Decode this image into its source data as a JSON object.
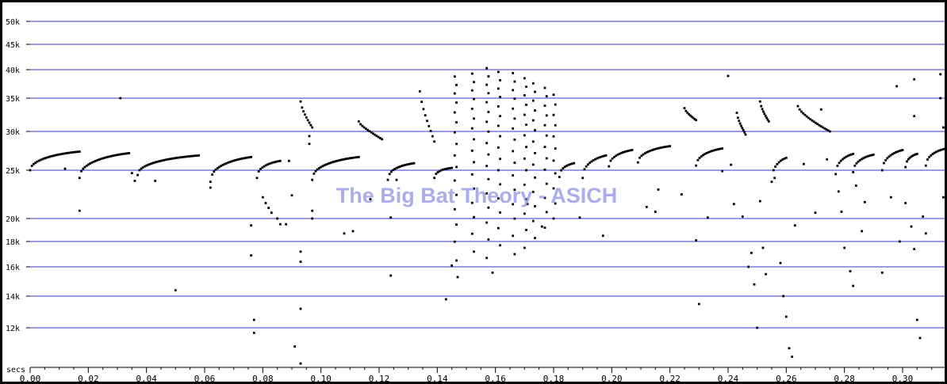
{
  "chart_data": {
    "type": "scatter",
    "title": "",
    "watermark": "The Big Bat Theory - ASICH",
    "x_unit_label": "secs",
    "xlim": [
      0.0,
      0.315
    ],
    "y_ticks": [
      {
        "value": 50000,
        "label": "50k"
      },
      {
        "value": 45000,
        "label": "45k"
      },
      {
        "value": 40000,
        "label": "40k"
      },
      {
        "value": 35000,
        "label": "35k"
      },
      {
        "value": 30000,
        "label": "30k"
      },
      {
        "value": 25000,
        "label": "25k"
      },
      {
        "value": 20000,
        "label": "20k"
      },
      {
        "value": 18000,
        "label": "18k"
      },
      {
        "value": 16000,
        "label": "16k"
      },
      {
        "value": 14000,
        "label": "14k"
      },
      {
        "value": 12000,
        "label": "12k"
      }
    ],
    "x_ticks": [
      {
        "value": 0.0,
        "label": "0.00"
      },
      {
        "value": 0.02,
        "label": "0.02"
      },
      {
        "value": 0.04,
        "label": "0.04"
      },
      {
        "value": 0.06,
        "label": "0.06"
      },
      {
        "value": 0.08,
        "label": "0.08"
      },
      {
        "value": 0.1,
        "label": "0.10"
      },
      {
        "value": 0.12,
        "label": "0.12"
      },
      {
        "value": 0.14,
        "label": "0.14"
      },
      {
        "value": 0.16,
        "label": "0.16"
      },
      {
        "value": 0.18,
        "label": "0.18"
      },
      {
        "value": 0.2,
        "label": "0.20"
      },
      {
        "value": 0.22,
        "label": "0.22"
      },
      {
        "value": 0.24,
        "label": "0.24"
      },
      {
        "value": 0.26,
        "label": "0.26"
      },
      {
        "value": 0.28,
        "label": "0.28"
      },
      {
        "value": 0.3,
        "label": "0.30"
      }
    ],
    "grid": true,
    "colors": {
      "gridline": "#3333cc",
      "point": "#000000",
      "watermark": "#8f92e3"
    },
    "calls": [
      {
        "t_start": 0.0,
        "t_end": 0.017,
        "f_start": 25000,
        "f_end": 27400
      },
      {
        "t_start": 0.017,
        "t_end": 0.034,
        "f_start": 24200,
        "f_end": 27200
      },
      {
        "t_start": 0.037,
        "t_end": 0.058,
        "f_start": 24500,
        "f_end": 26900
      },
      {
        "t_start": 0.062,
        "t_end": 0.076,
        "f_start": 23800,
        "f_end": 26700
      },
      {
        "t_start": 0.078,
        "t_end": 0.086,
        "f_start": 24200,
        "f_end": 26200
      },
      {
        "t_start": 0.093,
        "t_end": 0.097,
        "f_start": 34500,
        "f_end": 30600
      },
      {
        "t_start": 0.097,
        "t_end": 0.113,
        "f_start": 24000,
        "f_end": 26700
      },
      {
        "t_start": 0.113,
        "t_end": 0.121,
        "f_start": 31500,
        "f_end": 29000
      },
      {
        "t_start": 0.123,
        "t_end": 0.132,
        "f_start": 24000,
        "f_end": 25900
      },
      {
        "t_start": 0.134,
        "t_end": 0.139,
        "f_start": 36200,
        "f_end": 28700
      },
      {
        "t_start": 0.139,
        "t_end": 0.145,
        "f_start": 24200,
        "f_end": 25300
      },
      {
        "t_start": 0.182,
        "t_end": 0.187,
        "f_start": 24300,
        "f_end": 25900
      },
      {
        "t_start": 0.19,
        "t_end": 0.198,
        "f_start": 24200,
        "f_end": 26900
      },
      {
        "t_start": 0.199,
        "t_end": 0.207,
        "f_start": 25500,
        "f_end": 27600
      },
      {
        "t_start": 0.209,
        "t_end": 0.22,
        "f_start": 26000,
        "f_end": 28100
      },
      {
        "t_start": 0.225,
        "t_end": 0.229,
        "f_start": 33500,
        "f_end": 31700
      },
      {
        "t_start": 0.229,
        "t_end": 0.238,
        "f_start": 25600,
        "f_end": 27800
      },
      {
        "t_start": 0.243,
        "t_end": 0.246,
        "f_start": 32800,
        "f_end": 29600
      },
      {
        "t_start": 0.251,
        "t_end": 0.254,
        "f_start": 34500,
        "f_end": 31500
      },
      {
        "t_start": 0.255,
        "t_end": 0.26,
        "f_start": 23800,
        "f_end": 26600
      },
      {
        "t_start": 0.264,
        "t_end": 0.275,
        "f_start": 33800,
        "f_end": 30000
      },
      {
        "t_start": 0.277,
        "t_end": 0.283,
        "f_start": 24600,
        "f_end": 27100
      },
      {
        "t_start": 0.283,
        "t_end": 0.29,
        "f_start": 24800,
        "f_end": 27000
      },
      {
        "t_start": 0.293,
        "t_end": 0.3,
        "f_start": 25000,
        "f_end": 27600
      },
      {
        "t_start": 0.301,
        "t_end": 0.305,
        "f_start": 25400,
        "f_end": 27100
      },
      {
        "t_start": 0.308,
        "t_end": 0.315,
        "f_start": 25600,
        "f_end": 27800
      }
    ],
    "vertical_trains": [
      {
        "t": 0.146,
        "f_start": 38800,
        "f_end": 16500
      },
      {
        "t": 0.152,
        "f_start": 39300,
        "f_end": 17200
      },
      {
        "t": 0.157,
        "f_start": 40300,
        "f_end": 16700
      },
      {
        "t": 0.161,
        "f_start": 39600,
        "f_end": 17700
      },
      {
        "t": 0.166,
        "f_start": 39400,
        "f_end": 17000
      },
      {
        "t": 0.17,
        "f_start": 38500,
        "f_end": 17500
      },
      {
        "t": 0.173,
        "f_start": 37600,
        "f_end": 18300
      },
      {
        "t": 0.177,
        "f_start": 36800,
        "f_end": 19200
      },
      {
        "t": 0.18,
        "f_start": 35600,
        "f_end": 20000
      }
    ],
    "points": [
      [
        0.012,
        25200
      ],
      [
        0.017,
        20800
      ],
      [
        0.031,
        35000
      ],
      [
        0.035,
        24700
      ],
      [
        0.036,
        23900
      ],
      [
        0.043,
        23900
      ],
      [
        0.05,
        14400
      ],
      [
        0.062,
        23200
      ],
      [
        0.076,
        19400
      ],
      [
        0.076,
        16900
      ],
      [
        0.077,
        12500
      ],
      [
        0.077,
        11700
      ],
      [
        0.08,
        22200
      ],
      [
        0.081,
        21600
      ],
      [
        0.082,
        21100
      ],
      [
        0.083,
        20600
      ],
      [
        0.085,
        20000
      ],
      [
        0.086,
        19500
      ],
      [
        0.088,
        19500
      ],
      [
        0.089,
        26200
      ],
      [
        0.09,
        22400
      ],
      [
        0.091,
        10900
      ],
      [
        0.093,
        17200
      ],
      [
        0.093,
        16400
      ],
      [
        0.093,
        13200
      ],
      [
        0.093,
        9900
      ],
      [
        0.096,
        29400
      ],
      [
        0.096,
        28400
      ],
      [
        0.097,
        20800
      ],
      [
        0.097,
        20000
      ],
      [
        0.108,
        18700
      ],
      [
        0.111,
        18900
      ],
      [
        0.117,
        22000
      ],
      [
        0.124,
        20100
      ],
      [
        0.124,
        15400
      ],
      [
        0.126,
        24000
      ],
      [
        0.143,
        13800
      ],
      [
        0.145,
        16100
      ],
      [
        0.147,
        15300
      ],
      [
        0.159,
        15600
      ],
      [
        0.171,
        21500
      ],
      [
        0.176,
        19300
      ],
      [
        0.189,
        20100
      ],
      [
        0.197,
        18500
      ],
      [
        0.212,
        21200
      ],
      [
        0.215,
        20700
      ],
      [
        0.216,
        23000
      ],
      [
        0.224,
        22500
      ],
      [
        0.229,
        18100
      ],
      [
        0.23,
        13500
      ],
      [
        0.233,
        20100
      ],
      [
        0.238,
        24900
      ],
      [
        0.24,
        38900
      ],
      [
        0.241,
        25700
      ],
      [
        0.242,
        21500
      ],
      [
        0.245,
        20200
      ],
      [
        0.247,
        16000
      ],
      [
        0.248,
        17100
      ],
      [
        0.249,
        14800
      ],
      [
        0.25,
        12000
      ],
      [
        0.251,
        21800
      ],
      [
        0.252,
        17500
      ],
      [
        0.253,
        15500
      ],
      [
        0.256,
        24200
      ],
      [
        0.258,
        16300
      ],
      [
        0.259,
        14000
      ],
      [
        0.26,
        12700
      ],
      [
        0.261,
        10800
      ],
      [
        0.262,
        10300
      ],
      [
        0.263,
        19400
      ],
      [
        0.266,
        25800
      ],
      [
        0.27,
        20600
      ],
      [
        0.272,
        33300
      ],
      [
        0.274,
        26400
      ],
      [
        0.278,
        22800
      ],
      [
        0.279,
        20700
      ],
      [
        0.28,
        17500
      ],
      [
        0.282,
        15700
      ],
      [
        0.283,
        14700
      ],
      [
        0.284,
        23400
      ],
      [
        0.286,
        18900
      ],
      [
        0.287,
        21700
      ],
      [
        0.293,
        15600
      ],
      [
        0.296,
        22200
      ],
      [
        0.298,
        37100
      ],
      [
        0.299,
        18000
      ],
      [
        0.301,
        21600
      ],
      [
        0.303,
        19300
      ],
      [
        0.304,
        38300
      ],
      [
        0.304,
        32300
      ],
      [
        0.304,
        17400
      ],
      [
        0.305,
        12500
      ],
      [
        0.306,
        11400
      ],
      [
        0.307,
        20200
      ],
      [
        0.308,
        18700
      ],
      [
        0.313,
        39200
      ],
      [
        0.313,
        35000
      ],
      [
        0.314,
        30600
      ],
      [
        0.314,
        22200
      ]
    ]
  }
}
